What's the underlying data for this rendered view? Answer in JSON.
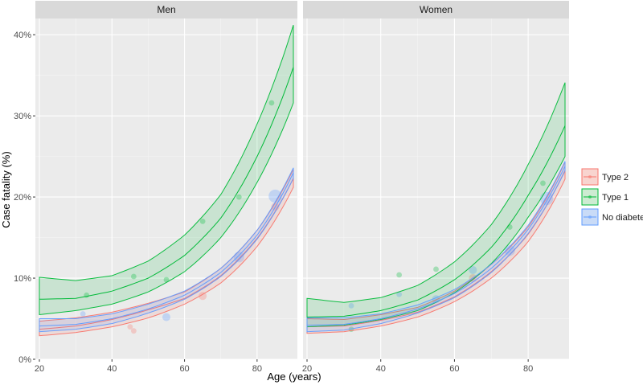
{
  "chart_data": {
    "type": "line",
    "ylabel": "Case fatality (%)",
    "xlabel": "Age (years)",
    "xlim": [
      20,
      90
    ],
    "ylim": [
      0,
      0.42
    ],
    "x_ticks": [
      20,
      40,
      60,
      80
    ],
    "x_tick_labels": [
      "20",
      "40",
      "60",
      "80"
    ],
    "y_ticks": [
      0,
      0.1,
      0.2,
      0.3,
      0.4
    ],
    "y_tick_labels": [
      "0%",
      "10%",
      "20%",
      "30%",
      "40%"
    ],
    "grid": true,
    "legend_position": "right",
    "legend": [
      {
        "label": "Type 2",
        "color": "#F8766D",
        "fill": "#F8D4CF"
      },
      {
        "label": "Type 1",
        "color": "#00BA38",
        "fill": "#CDEBD2"
      },
      {
        "label": "No diabetes",
        "color": "#619CFF",
        "fill": "#C9DBF7"
      }
    ],
    "panels": [
      {
        "label": "Men",
        "series": [
          {
            "name": "Type 2",
            "points": [
              {
                "x": 20,
                "mean": 0.037,
                "lo": 0.029,
                "hi": 0.047
              },
              {
                "x": 30,
                "mean": 0.041,
                "lo": 0.033,
                "hi": 0.051
              },
              {
                "x": 40,
                "mean": 0.049,
                "lo": 0.04,
                "hi": 0.058
              },
              {
                "x": 50,
                "mean": 0.061,
                "lo": 0.051,
                "hi": 0.069
              },
              {
                "x": 60,
                "mean": 0.075,
                "lo": 0.068,
                "hi": 0.083
              },
              {
                "x": 70,
                "mean": 0.103,
                "lo": 0.094,
                "hi": 0.112
              },
              {
                "x": 80,
                "mean": 0.149,
                "lo": 0.139,
                "hi": 0.159
              },
              {
                "x": 90,
                "mean": 0.223,
                "lo": 0.212,
                "hi": 0.234
              }
            ]
          },
          {
            "name": "Type 1",
            "points": [
              {
                "x": 20,
                "mean": 0.074,
                "lo": 0.055,
                "hi": 0.101
              },
              {
                "x": 30,
                "mean": 0.075,
                "lo": 0.06,
                "hi": 0.097
              },
              {
                "x": 40,
                "mean": 0.084,
                "lo": 0.068,
                "hi": 0.103
              },
              {
                "x": 50,
                "mean": 0.1,
                "lo": 0.083,
                "hi": 0.121
              },
              {
                "x": 60,
                "mean": 0.128,
                "lo": 0.108,
                "hi": 0.153
              },
              {
                "x": 70,
                "mean": 0.174,
                "lo": 0.15,
                "hi": 0.203
              },
              {
                "x": 80,
                "mean": 0.25,
                "lo": 0.218,
                "hi": 0.29
              },
              {
                "x": 90,
                "mean": 0.36,
                "lo": 0.316,
                "hi": 0.412
              }
            ]
          },
          {
            "name": "No diabetes",
            "points": [
              {
                "x": 20,
                "mean": 0.041,
                "lo": 0.034,
                "hi": 0.05
              },
              {
                "x": 30,
                "mean": 0.043,
                "lo": 0.037,
                "hi": 0.05
              },
              {
                "x": 40,
                "mean": 0.05,
                "lo": 0.044,
                "hi": 0.056
              },
              {
                "x": 50,
                "mean": 0.062,
                "lo": 0.057,
                "hi": 0.068
              },
              {
                "x": 60,
                "mean": 0.079,
                "lo": 0.074,
                "hi": 0.084
              },
              {
                "x": 70,
                "mean": 0.107,
                "lo": 0.102,
                "hi": 0.112
              },
              {
                "x": 80,
                "mean": 0.153,
                "lo": 0.148,
                "hi": 0.159
              },
              {
                "x": 90,
                "mean": 0.23,
                "lo": 0.223,
                "hi": 0.236
              }
            ]
          }
        ],
        "observed": [
          {
            "series": "No diabetes",
            "x": 32,
            "y": 0.056,
            "size": 1
          },
          {
            "series": "Type 1",
            "x": 33,
            "y": 0.079,
            "size": 1
          },
          {
            "series": "Type 2",
            "x": 45,
            "y": 0.04,
            "size": 1
          },
          {
            "series": "Type 2",
            "x": 46,
            "y": 0.035,
            "size": 1
          },
          {
            "series": "Type 1",
            "x": 46,
            "y": 0.102,
            "size": 1
          },
          {
            "series": "No diabetes",
            "x": 55,
            "y": 0.052,
            "size": 2
          },
          {
            "series": "Type 1",
            "x": 55,
            "y": 0.098,
            "size": 1
          },
          {
            "series": "Type 2",
            "x": 65,
            "y": 0.078,
            "size": 2
          },
          {
            "series": "Type 1",
            "x": 65,
            "y": 0.17,
            "size": 1
          },
          {
            "series": "No diabetes",
            "x": 75,
            "y": 0.126,
            "size": 3
          },
          {
            "series": "Type 1",
            "x": 75,
            "y": 0.2,
            "size": 1
          },
          {
            "series": "Type 1",
            "x": 84,
            "y": 0.316,
            "size": 1
          },
          {
            "series": "No diabetes",
            "x": 85,
            "y": 0.201,
            "size": 4
          },
          {
            "series": "Type 2",
            "x": 85,
            "y": 0.188,
            "size": 2
          }
        ]
      },
      {
        "label": "Women",
        "series": [
          {
            "name": "Type 2",
            "points": [
              {
                "x": 20,
                "mean": 0.04,
                "lo": 0.032,
                "hi": 0.05
              },
              {
                "x": 30,
                "mean": 0.041,
                "lo": 0.034,
                "hi": 0.049
              },
              {
                "x": 40,
                "mean": 0.048,
                "lo": 0.041,
                "hi": 0.055
              },
              {
                "x": 50,
                "mean": 0.058,
                "lo": 0.052,
                "hi": 0.064
              },
              {
                "x": 60,
                "mean": 0.077,
                "lo": 0.071,
                "hi": 0.084
              },
              {
                "x": 70,
                "mean": 0.108,
                "lo": 0.1,
                "hi": 0.117
              },
              {
                "x": 80,
                "mean": 0.154,
                "lo": 0.145,
                "hi": 0.163
              },
              {
                "x": 90,
                "mean": 0.233,
                "lo": 0.222,
                "hi": 0.243
              }
            ]
          },
          {
            "name": "Type 1",
            "points": [
              {
                "x": 20,
                "mean": 0.052,
                "lo": 0.04,
                "hi": 0.075
              },
              {
                "x": 30,
                "mean": 0.053,
                "lo": 0.042,
                "hi": 0.07
              },
              {
                "x": 40,
                "mean": 0.06,
                "lo": 0.049,
                "hi": 0.076
              },
              {
                "x": 50,
                "mean": 0.073,
                "lo": 0.06,
                "hi": 0.091
              },
              {
                "x": 60,
                "mean": 0.098,
                "lo": 0.082,
                "hi": 0.12
              },
              {
                "x": 70,
                "mean": 0.138,
                "lo": 0.118,
                "hi": 0.166
              },
              {
                "x": 80,
                "mean": 0.202,
                "lo": 0.175,
                "hi": 0.24
              },
              {
                "x": 90,
                "mean": 0.288,
                "lo": 0.25,
                "hi": 0.341
              }
            ]
          },
          {
            "name": "No diabetes",
            "points": [
              {
                "x": 20,
                "mean": 0.042,
                "lo": 0.034,
                "hi": 0.051
              },
              {
                "x": 30,
                "mean": 0.043,
                "lo": 0.036,
                "hi": 0.051
              },
              {
                "x": 40,
                "mean": 0.05,
                "lo": 0.044,
                "hi": 0.056
              },
              {
                "x": 50,
                "mean": 0.062,
                "lo": 0.057,
                "hi": 0.067
              },
              {
                "x": 60,
                "mean": 0.081,
                "lo": 0.076,
                "hi": 0.086
              },
              {
                "x": 70,
                "mean": 0.112,
                "lo": 0.107,
                "hi": 0.117
              },
              {
                "x": 80,
                "mean": 0.16,
                "lo": 0.155,
                "hi": 0.165
              },
              {
                "x": 90,
                "mean": 0.238,
                "lo": 0.232,
                "hi": 0.244
              }
            ]
          }
        ],
        "observed": [
          {
            "series": "No diabetes",
            "x": 32,
            "y": 0.066,
            "size": 1
          },
          {
            "series": "Type 1",
            "x": 32,
            "y": 0.037,
            "size": 1
          },
          {
            "series": "Type 1",
            "x": 45,
            "y": 0.104,
            "size": 1
          },
          {
            "series": "No diabetes",
            "x": 45,
            "y": 0.08,
            "size": 1
          },
          {
            "series": "Type 1",
            "x": 55,
            "y": 0.111,
            "size": 1
          },
          {
            "series": "No diabetes",
            "x": 55,
            "y": 0.074,
            "size": 2
          },
          {
            "series": "No diabetes",
            "x": 65,
            "y": 0.11,
            "size": 2
          },
          {
            "series": "Type 2",
            "x": 65,
            "y": 0.1,
            "size": 2
          },
          {
            "series": "No diabetes",
            "x": 75,
            "y": 0.134,
            "size": 3
          },
          {
            "series": "Type 1",
            "x": 75,
            "y": 0.163,
            "size": 1
          },
          {
            "series": "Type 1",
            "x": 84,
            "y": 0.217,
            "size": 1
          },
          {
            "series": "No diabetes",
            "x": 85,
            "y": 0.198,
            "size": 4
          }
        ]
      }
    ]
  }
}
